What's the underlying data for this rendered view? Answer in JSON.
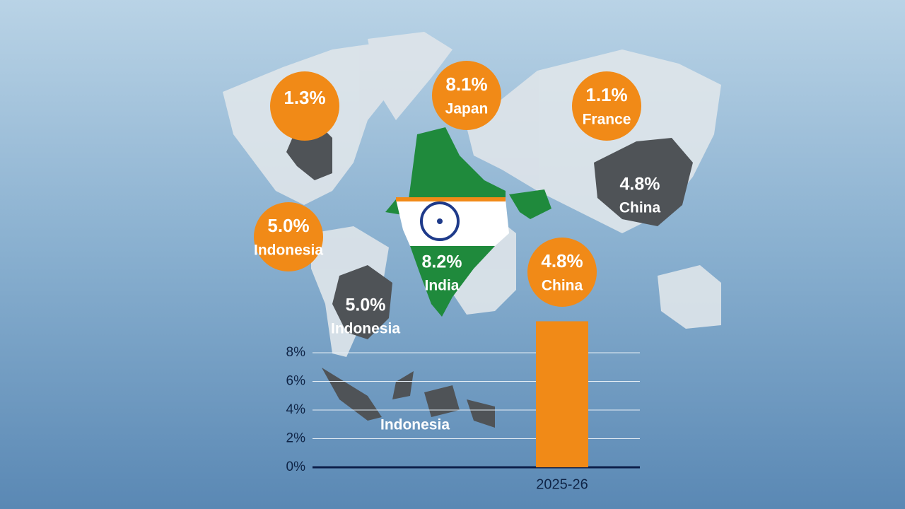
{
  "chart_data": {
    "type": "bar",
    "categories": [
      "2025-26"
    ],
    "values": [
      10.2
    ],
    "color": "#f18a17",
    "ylim": [
      0,
      10
    ],
    "yticks": [
      {
        "value": 0,
        "label": "0%"
      },
      {
        "value": 2,
        "label": "2%"
      },
      {
        "value": 4,
        "label": "4%"
      },
      {
        "value": 6,
        "label": "6%"
      },
      {
        "value": 8,
        "label": "8%"
      }
    ],
    "grid": true
  },
  "map_labels": {
    "bubbles": [
      {
        "rate": "1.3%"
      },
      {
        "rate": "8.1%",
        "country": "Japan"
      },
      {
        "rate": "1.1%",
        "country": "France"
      },
      {
        "rate": "5.0%",
        "country": "Indonesia"
      },
      {
        "rate": "4.8%",
        "country": "China"
      }
    ],
    "regions": [
      {
        "rate": "4.8%",
        "country": "China"
      },
      {
        "rate": "8.2%",
        "country": "India"
      },
      {
        "rate": "5.0%",
        "country": "Indonesia"
      },
      {
        "country": "Indonesia"
      }
    ]
  }
}
